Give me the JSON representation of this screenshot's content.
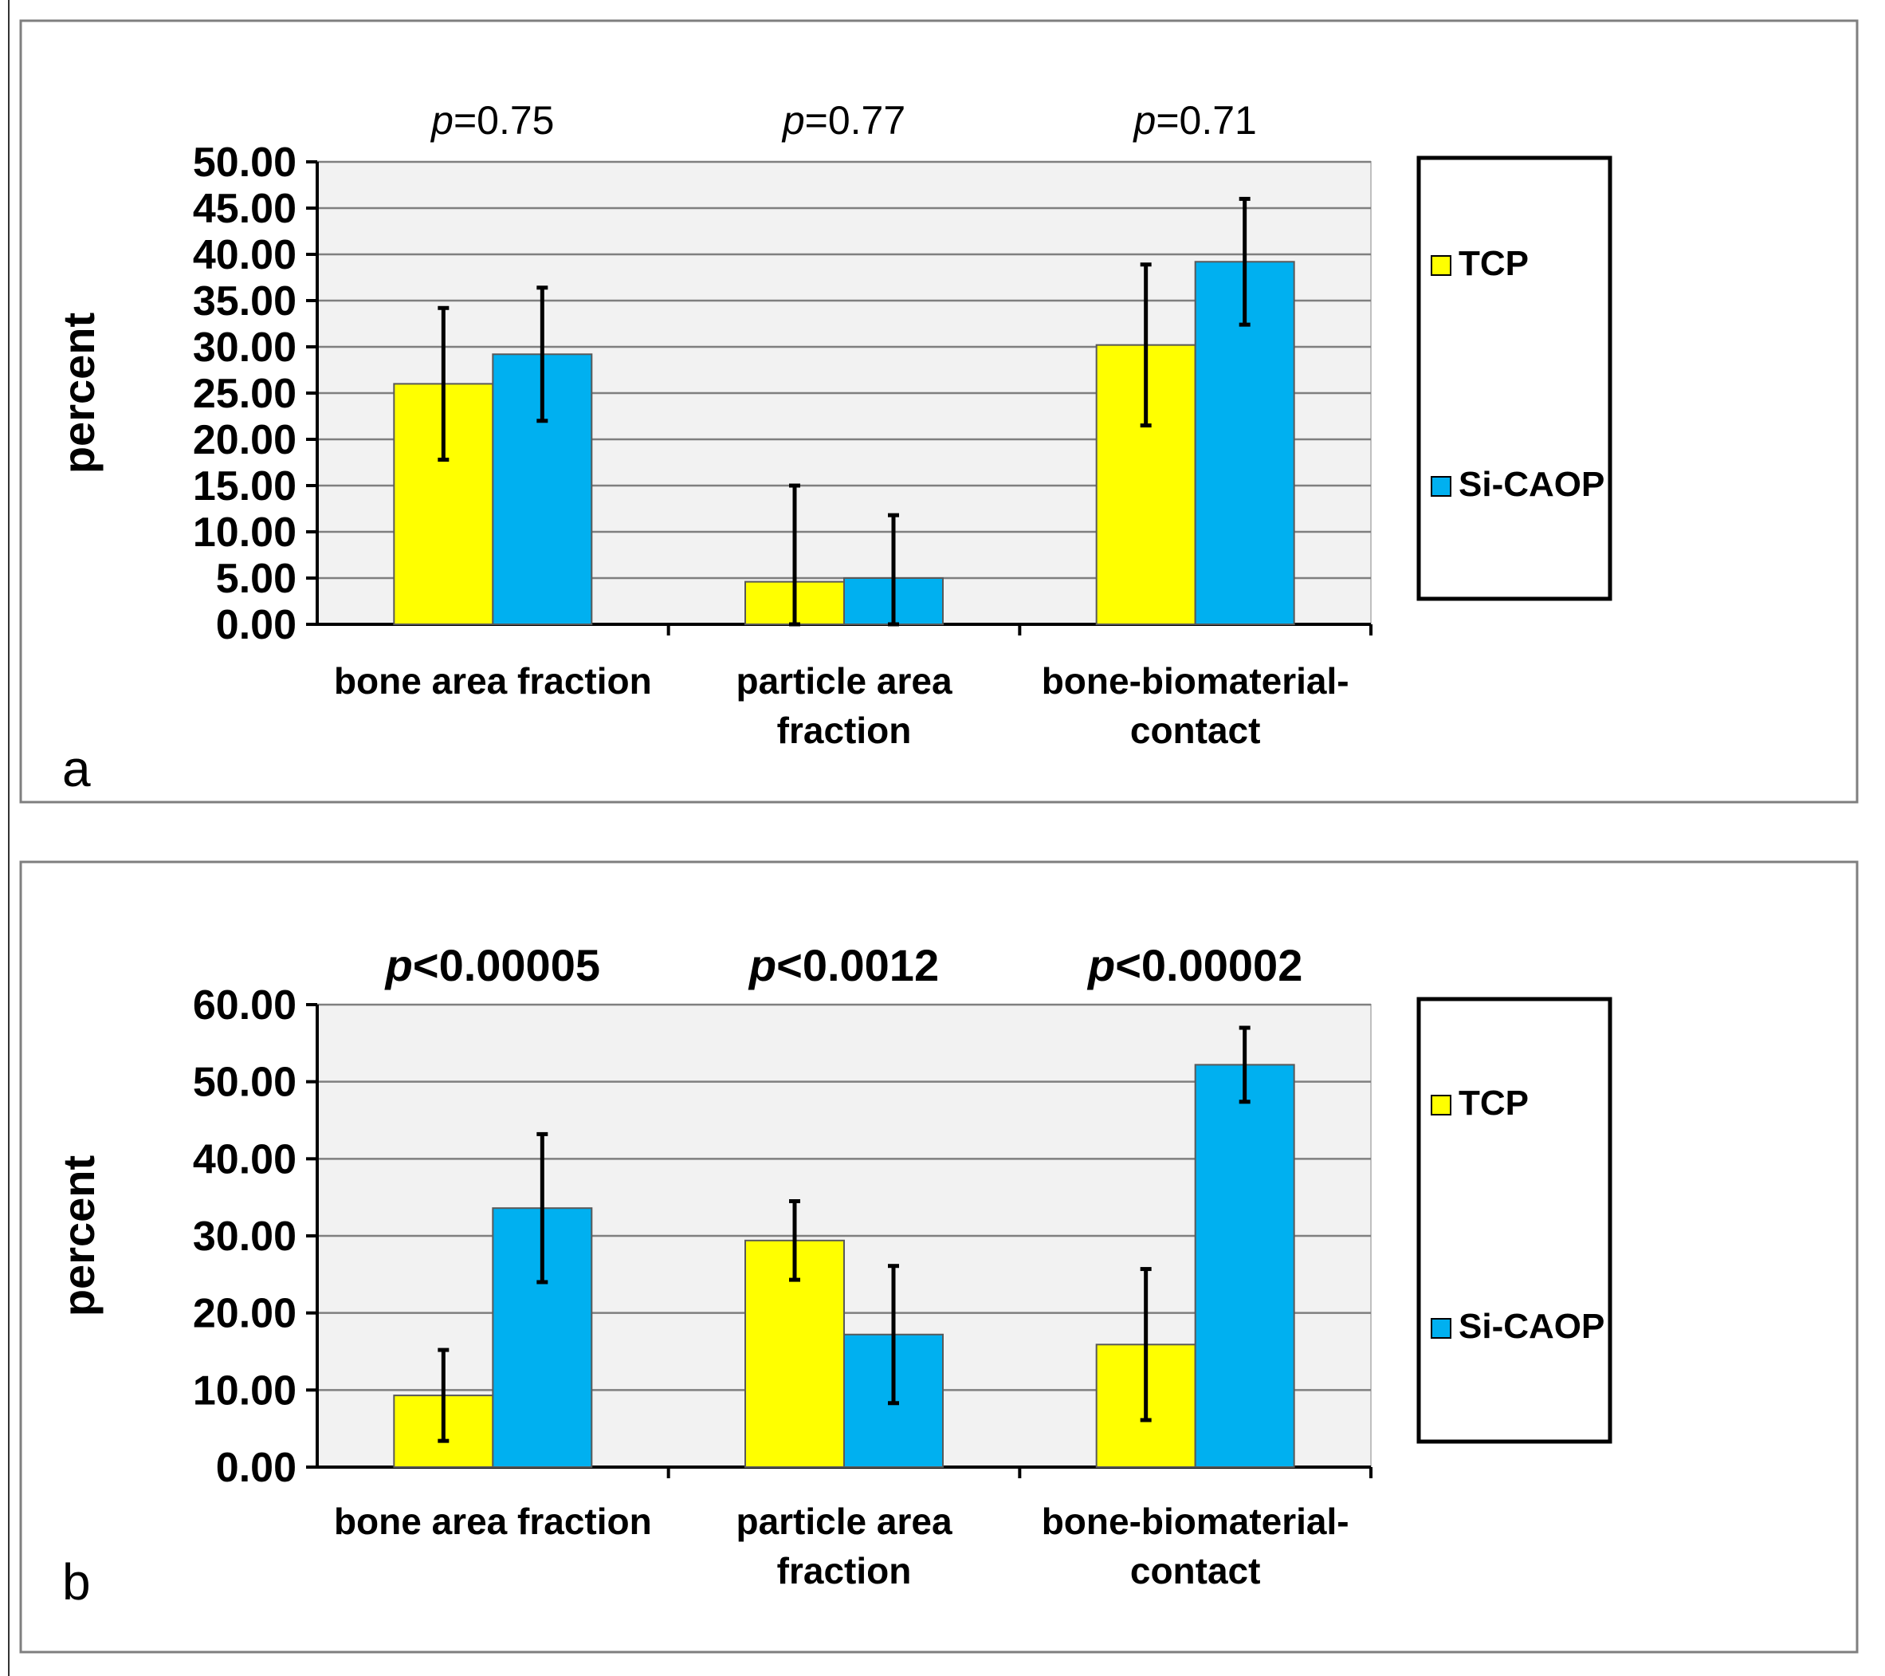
{
  "colors": {
    "TCP": "#ffff00",
    "Si-CAOP": "#00b0f0",
    "plot_bg": "#f2f2f2",
    "grid": "#7f7f7f"
  },
  "chart_data": [
    {
      "panel": "a",
      "type": "bar",
      "ylabel": "percent",
      "ylim": [
        0,
        50
      ],
      "yticks": [
        "0.00",
        "5.00",
        "10.00",
        "15.00",
        "20.00",
        "25.00",
        "30.00",
        "35.00",
        "40.00",
        "45.00",
        "50.00"
      ],
      "categories": [
        [
          "bone area fraction"
        ],
        [
          "particle area",
          "fraction"
        ],
        [
          "bone-biomaterial-",
          "contact"
        ]
      ],
      "p_values": [
        {
          "p": "p",
          "rel": "=0.75"
        },
        {
          "p": "p",
          "rel": "=0.77"
        },
        {
          "p": "p",
          "rel": "=0.71"
        }
      ],
      "p_bold": false,
      "series": [
        {
          "name": "TCP",
          "values": [
            26.0,
            4.6,
            30.2
          ],
          "errors": [
            8.2,
            10.4,
            8.7
          ]
        },
        {
          "name": "Si-CAOP",
          "values": [
            29.2,
            5.0,
            39.2
          ],
          "errors": [
            7.2,
            6.8,
            6.8
          ]
        }
      ],
      "legend": [
        "TCP",
        "Si-CAOP"
      ]
    },
    {
      "panel": "b",
      "type": "bar",
      "ylabel": "percent",
      "ylim": [
        0,
        60
      ],
      "yticks": [
        "0.00",
        "10.00",
        "20.00",
        "30.00",
        "40.00",
        "50.00",
        "60.00"
      ],
      "categories": [
        [
          "bone area fraction"
        ],
        [
          "particle area",
          "fraction"
        ],
        [
          "bone-biomaterial-",
          "contact"
        ]
      ],
      "p_values": [
        {
          "p": "p",
          "rel": "<0.00005"
        },
        {
          "p": "p",
          "rel": "<0.0012"
        },
        {
          "p": "p",
          "rel": "<0.00002"
        }
      ],
      "p_bold": true,
      "series": [
        {
          "name": "TCP",
          "values": [
            9.3,
            29.4,
            15.9
          ],
          "errors": [
            5.9,
            5.1,
            9.8
          ]
        },
        {
          "name": "Si-CAOP",
          "values": [
            33.6,
            17.2,
            52.2
          ],
          "errors": [
            9.6,
            8.9,
            4.8
          ]
        }
      ],
      "legend": [
        "TCP",
        "Si-CAOP"
      ]
    }
  ]
}
